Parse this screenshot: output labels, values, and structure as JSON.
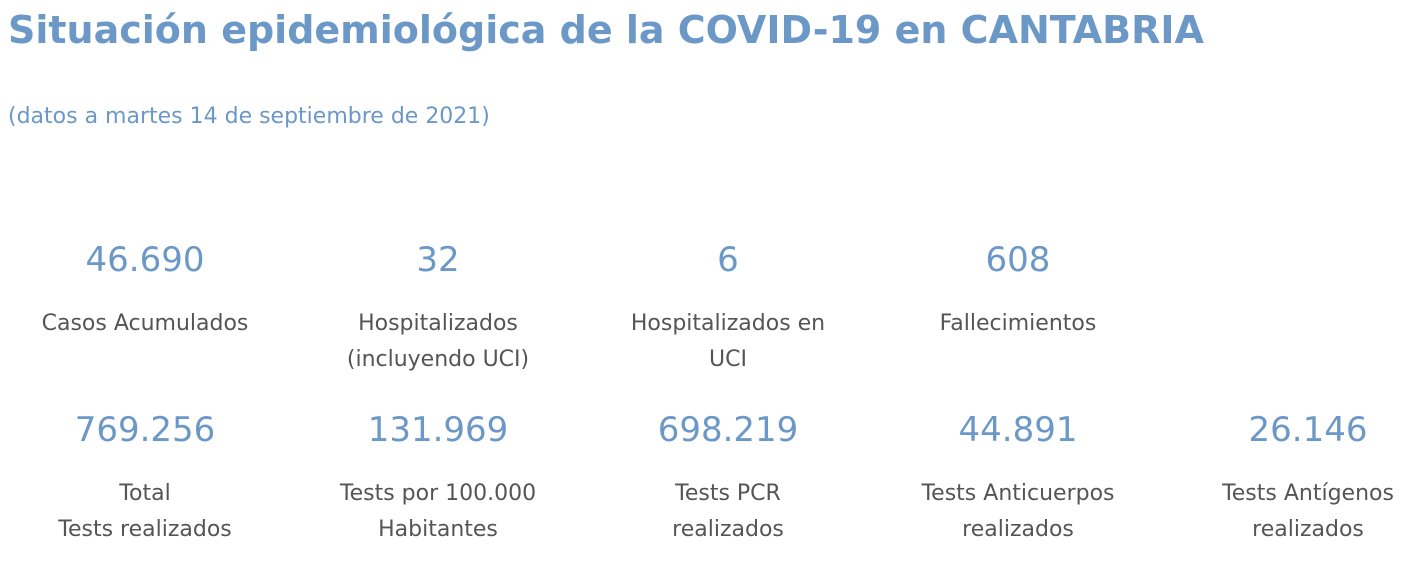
{
  "header": {
    "title": "Situación epidemiológica de la COVID-19 en CANTABRIA",
    "subtitle": "(datos a martes 14 de septiembre de 2021)"
  },
  "stats_row1": [
    {
      "value": "46.690",
      "label_line1": "Casos Acumulados",
      "label_line2": ""
    },
    {
      "value": "32",
      "label_line1": "Hospitalizados",
      "label_line2": "(incluyendo UCI)"
    },
    {
      "value": "6",
      "label_line1": "Hospitalizados en",
      "label_line2": "UCI"
    },
    {
      "value": "608",
      "label_line1": "Fallecimientos",
      "label_line2": ""
    }
  ],
  "stats_row2": [
    {
      "value": "769.256",
      "label_line1": "Total",
      "label_line2": "Tests realizados"
    },
    {
      "value": "131.969",
      "label_line1": "Tests por 100.000",
      "label_line2": "Habitantes"
    },
    {
      "value": "698.219",
      "label_line1": "Tests PCR",
      "label_line2": "realizados"
    },
    {
      "value": "44.891",
      "label_line1": "Tests Anticuerpos",
      "label_line2": "realizados"
    },
    {
      "value": "26.146",
      "label_line1": "Tests Antígenos",
      "label_line2": "realizados"
    }
  ],
  "colors": {
    "accent": "#6b98c6",
    "label_text": "#555555",
    "background": "#ffffff"
  }
}
